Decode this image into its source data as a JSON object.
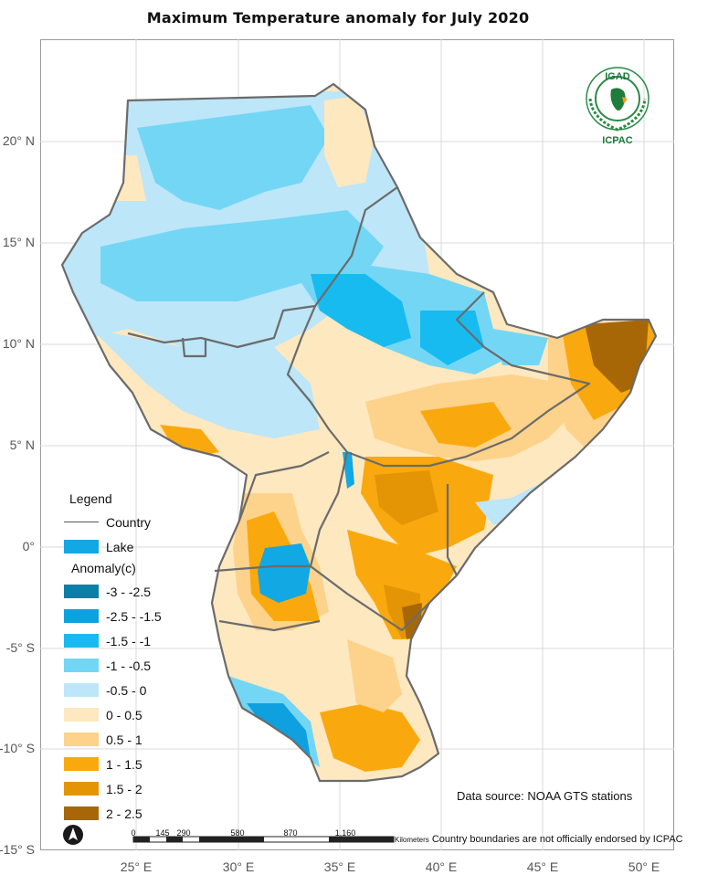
{
  "title": "Maximum Temperature  anomaly for  July 2020",
  "lat_labels": [
    {
      "label": "20° N",
      "lat": 20
    },
    {
      "label": "15° N",
      "lat": 15
    },
    {
      "label": "10° N",
      "lat": 10
    },
    {
      "label": "5° N",
      "lat": 5
    },
    {
      "label": "0°",
      "lat": 0
    },
    {
      "label": "-5° S",
      "lat": -5
    },
    {
      "label": "-10° S",
      "lat": -10
    },
    {
      "label": "-15° S",
      "lat": -15
    }
  ],
  "lon_labels": [
    {
      "label": "25° E",
      "lon": 25
    },
    {
      "label": "30° E",
      "lon": 30
    },
    {
      "label": "35° E",
      "lon": 35
    },
    {
      "label": "40° E",
      "lon": 40
    },
    {
      "label": "45° E",
      "lon": 45
    },
    {
      "label": "50° E",
      "lon": 50
    }
  ],
  "legend": {
    "title": "Legend",
    "country_label": "Country",
    "lake_label": "Lake",
    "lake_color": "#11a8e3",
    "anomaly_title": "Anomaly(c)",
    "classes": [
      {
        "label": "-3 - -2.5",
        "color": "#0b7fa8"
      },
      {
        "label": "-2.5 - -1.5",
        "color": "#0fa0e0"
      },
      {
        "label": "-1.5 - -1",
        "color": "#17bbf0"
      },
      {
        "label": "-1 - -0.5",
        "color": "#74d6f5"
      },
      {
        "label": "-0.5 - 0",
        "color": "#bde6f8"
      },
      {
        "label": "0 - 0.5",
        "color": "#fde8c0"
      },
      {
        "label": "0.5 - 1",
        "color": "#fdd28a"
      },
      {
        "label": "1 - 1.5",
        "color": "#f9a90e"
      },
      {
        "label": "1.5 - 2",
        "color": "#e39506"
      },
      {
        "label": "2 - 2.5",
        "color": "#a76706"
      }
    ]
  },
  "logo": {
    "top_text": "IGAD",
    "bottom_text": "ICPAC"
  },
  "source_text": "Data source: NOAA   GTS stations",
  "disclaimer": "Country boundaries are not officially endorsed by ICPAC",
  "scale": {
    "ticks": [
      "0",
      "145",
      "290",
      "580",
      "870",
      "1,160"
    ],
    "unit": "Kilometers"
  }
}
